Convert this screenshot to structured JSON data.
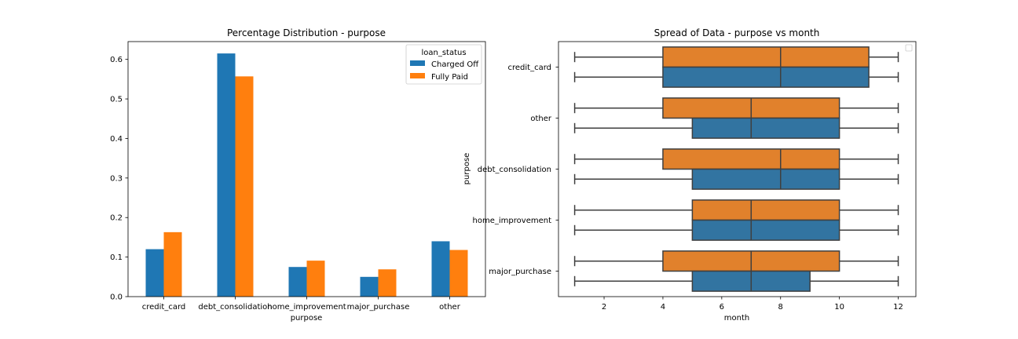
{
  "chart_data": [
    {
      "type": "bar",
      "title": "Percentage Distribution - purpose",
      "xlabel": "purpose",
      "ylabel": "",
      "categories": [
        "credit_card",
        "debt_consolidation",
        "home_improvement",
        "major_purchase",
        "other"
      ],
      "series": [
        {
          "name": "Charged Off",
          "values": [
            0.12,
            0.615,
            0.075,
            0.05,
            0.14
          ],
          "color": "#1f77b4"
        },
        {
          "name": "Fully Paid",
          "values": [
            0.163,
            0.557,
            0.091,
            0.069,
            0.118
          ],
          "color": "#ff7f0e"
        }
      ],
      "ylim": [
        0,
        0.645
      ],
      "yticks": [
        0.0,
        0.1,
        0.2,
        0.3,
        0.4,
        0.5,
        0.6
      ],
      "ytick_labels": [
        "0.0",
        "0.1",
        "0.2",
        "0.3",
        "0.4",
        "0.5",
        "0.6"
      ],
      "legend": {
        "title": "loan_status",
        "placement": "top-right"
      },
      "grid": false
    },
    {
      "type": "boxplot",
      "orientation": "horizontal",
      "title": "Spread of Data - purpose vs month",
      "xlabel": "month",
      "ylabel": "purpose",
      "categories": [
        "credit_card",
        "other",
        "debt_consolidation",
        "home_improvement",
        "major_purchase"
      ],
      "xlim": [
        0.45,
        12.6
      ],
      "xticks": [
        2,
        4,
        6,
        8,
        10,
        12
      ],
      "xtick_labels": [
        "2",
        "4",
        "6",
        "8",
        "10",
        "12"
      ],
      "series": [
        {
          "color": "#e1812c",
          "boxes": [
            {
              "category": "credit_card",
              "min": 1,
              "q1": 4,
              "median": 8,
              "q3": 11,
              "max": 12
            },
            {
              "category": "other",
              "min": 1,
              "q1": 4,
              "median": 7,
              "q3": 10,
              "max": 12
            },
            {
              "category": "debt_consolidation",
              "min": 1,
              "q1": 4,
              "median": 8,
              "q3": 10,
              "max": 12
            },
            {
              "category": "home_improvement",
              "min": 1,
              "q1": 5,
              "median": 7,
              "q3": 10,
              "max": 12
            },
            {
              "category": "major_purchase",
              "min": 1,
              "q1": 4,
              "median": 7,
              "q3": 10,
              "max": 12
            }
          ]
        },
        {
          "color": "#3274a1",
          "boxes": [
            {
              "category": "credit_card",
              "min": 1,
              "q1": 4,
              "median": 8,
              "q3": 11,
              "max": 12
            },
            {
              "category": "other",
              "min": 1,
              "q1": 5,
              "median": 7,
              "q3": 10,
              "max": 12
            },
            {
              "category": "debt_consolidation",
              "min": 1,
              "q1": 5,
              "median": 8,
              "q3": 10,
              "max": 12
            },
            {
              "category": "home_improvement",
              "min": 1,
              "q1": 5,
              "median": 7,
              "q3": 10,
              "max": 12
            },
            {
              "category": "major_purchase",
              "min": 1,
              "q1": 5,
              "median": 7,
              "q3": 9,
              "max": 12
            }
          ]
        }
      ],
      "legend": {
        "placement": "top-right",
        "entries": []
      },
      "grid": false
    }
  ]
}
